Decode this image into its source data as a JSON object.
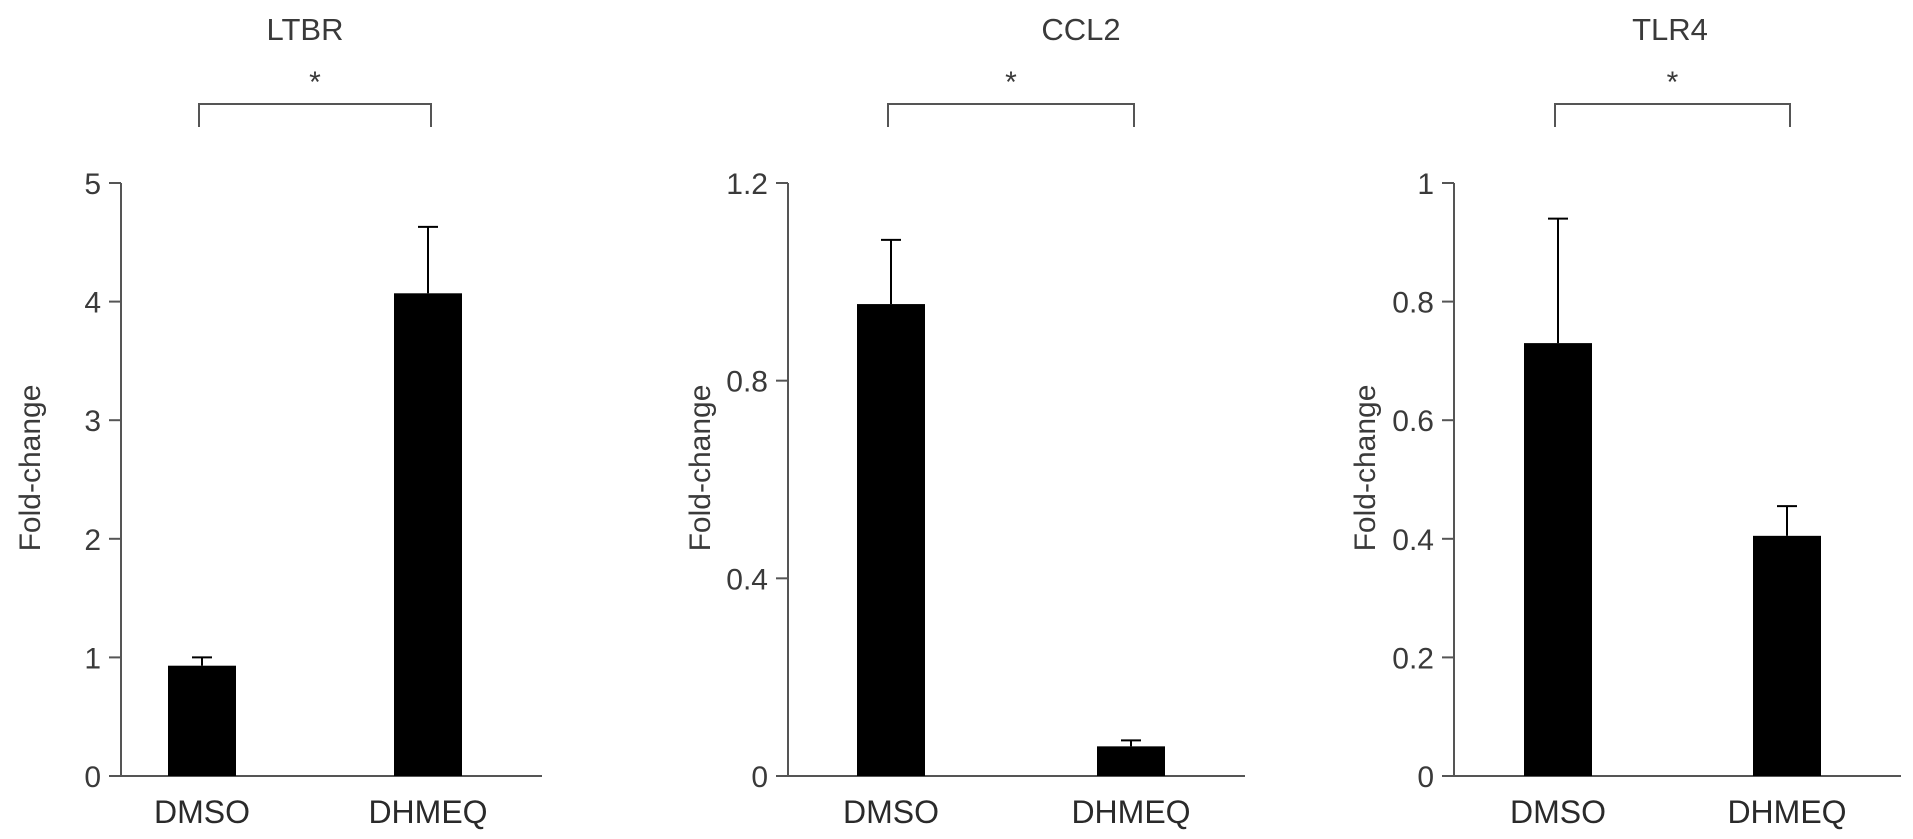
{
  "chart_data": [
    {
      "type": "bar",
      "title": "LTBR",
      "ylabel": "Fold-change",
      "xlabel": "",
      "categories": [
        "DMSO",
        "DHMEQ"
      ],
      "values": [
        0.93,
        4.07
      ],
      "errors": [
        0.07,
        0.56
      ],
      "ylim": [
        0,
        5
      ],
      "yticks": [
        0,
        1,
        2,
        3,
        4,
        5
      ],
      "ytick_labels": [
        "0",
        "1",
        "2",
        "3",
        "4",
        "5"
      ],
      "significance": "*",
      "bar_color": "#000000"
    },
    {
      "type": "bar",
      "title": "CCL2",
      "ylabel": "Fold-change",
      "xlabel": "",
      "categories": [
        "DMSO",
        "DHMEQ"
      ],
      "values": [
        0.955,
        0.06
      ],
      "errors": [
        0.13,
        0.012
      ],
      "ylim": [
        0,
        1.2
      ],
      "yticks": [
        0,
        0.4,
        0.8,
        1.2
      ],
      "ytick_labels": [
        "0",
        "0.4",
        "0.8",
        "1.2"
      ],
      "significance": "*",
      "bar_color": "#000000"
    },
    {
      "type": "bar",
      "title": "TLR4",
      "ylabel": "Fold-change",
      "xlabel": "",
      "categories": [
        "DMSO",
        "DHMEQ"
      ],
      "values": [
        0.73,
        0.405
      ],
      "errors": [
        0.21,
        0.05
      ],
      "ylim": [
        0,
        1
      ],
      "yticks": [
        0,
        0.2,
        0.4,
        0.6,
        0.8,
        1
      ],
      "ytick_labels": [
        "0",
        "0.2",
        "0.4",
        "0.6",
        "0.8",
        "1"
      ],
      "significance": "*",
      "bar_color": "#000000"
    }
  ]
}
